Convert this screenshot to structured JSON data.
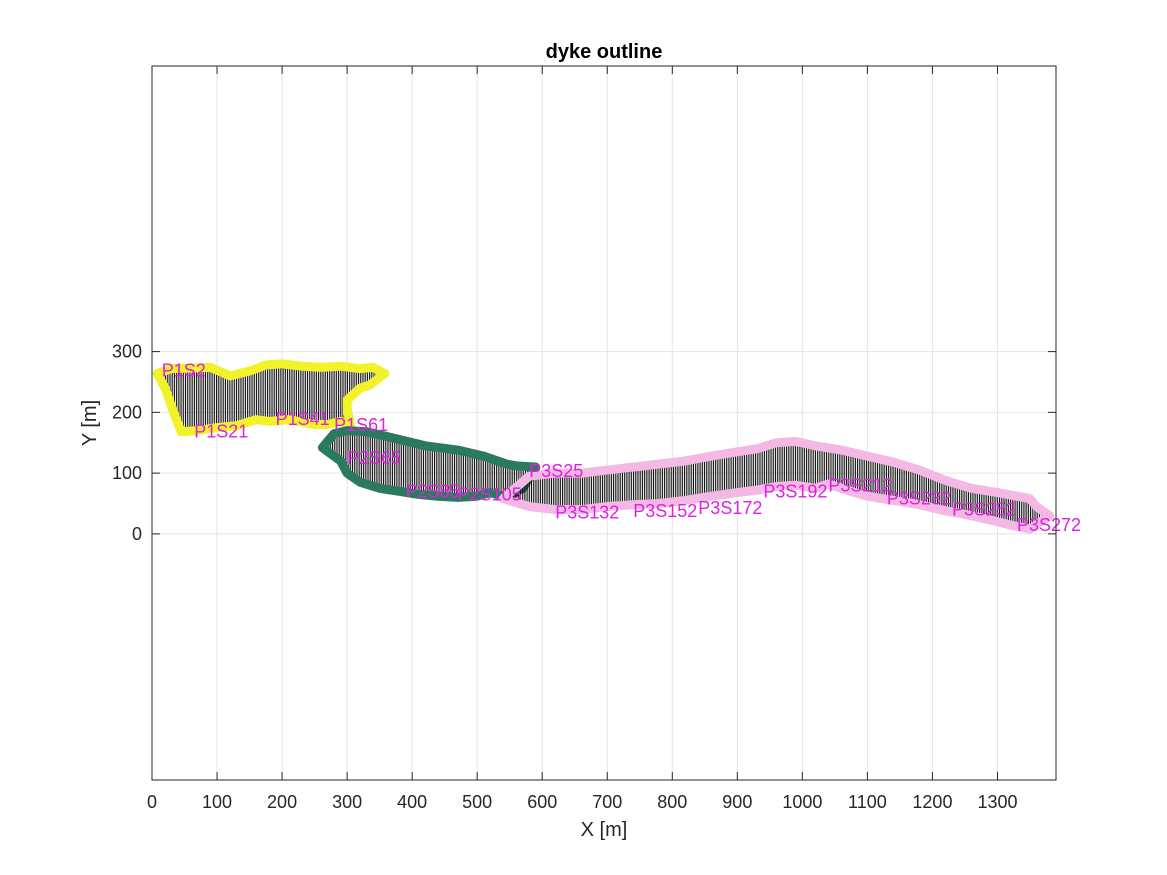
{
  "chart_data": {
    "type": "line",
    "title": "dyke outline",
    "xlabel": "X [m]",
    "ylabel": "Y [m]",
    "xlim": [
      0,
      1390
    ],
    "ylim": [
      -405,
      770
    ],
    "x_ticks": [
      0,
      100,
      200,
      300,
      400,
      500,
      600,
      700,
      800,
      900,
      1000,
      1100,
      1200,
      1300
    ],
    "y_ticks": [
      0,
      100,
      200,
      300
    ],
    "grid": true,
    "colors": {
      "yellow": "#f2f22a",
      "green": "#2a7a60",
      "pink": "#f4b8e4",
      "labels": "#e020e0",
      "hatch": "#000000"
    },
    "series": [
      {
        "color": "#f2f22a",
        "top": [
          [
            8,
            264
          ],
          [
            30,
            272
          ],
          [
            60,
            273
          ],
          [
            90,
            274
          ],
          [
            120,
            260
          ],
          [
            150,
            268
          ],
          [
            175,
            278
          ],
          [
            200,
            280
          ],
          [
            230,
            276
          ],
          [
            260,
            274
          ],
          [
            290,
            276
          ],
          [
            320,
            272
          ],
          [
            340,
            274
          ],
          [
            358,
            264
          ]
        ],
        "bottom": [
          [
            8,
            264
          ],
          [
            20,
            240
          ],
          [
            35,
            195
          ],
          [
            45,
            168
          ],
          [
            70,
            170
          ],
          [
            100,
            175
          ],
          [
            130,
            178
          ],
          [
            160,
            188
          ],
          [
            180,
            185
          ],
          [
            210,
            188
          ],
          [
            250,
            180
          ],
          [
            270,
            180
          ],
          [
            290,
            185
          ],
          [
            305,
            180
          ],
          [
            300,
            205
          ],
          [
            300,
            220
          ],
          [
            320,
            240
          ],
          [
            335,
            245
          ],
          [
            358,
            264
          ]
        ]
      },
      {
        "color": "#2a7a60",
        "top": [
          [
            262,
            142
          ],
          [
            280,
            165
          ],
          [
            300,
            170
          ],
          [
            330,
            168
          ],
          [
            370,
            158
          ],
          [
            420,
            145
          ],
          [
            470,
            138
          ],
          [
            510,
            128
          ],
          [
            545,
            115
          ],
          [
            560,
            112
          ],
          [
            590,
            110
          ]
        ],
        "bottom": [
          [
            262,
            142
          ],
          [
            290,
            120
          ],
          [
            300,
            100
          ],
          [
            320,
            85
          ],
          [
            350,
            75
          ],
          [
            380,
            70
          ],
          [
            410,
            65
          ],
          [
            440,
            62
          ],
          [
            470,
            60
          ],
          [
            500,
            62
          ],
          [
            520,
            68
          ],
          [
            545,
            60
          ],
          [
            570,
            75
          ],
          [
            590,
            110
          ]
        ]
      },
      {
        "color": "#f4b8e4",
        "top": [
          [
            540,
            58
          ],
          [
            580,
            95
          ],
          [
            620,
            100
          ],
          [
            660,
            100
          ],
          [
            700,
            105
          ],
          [
            740,
            110
          ],
          [
            780,
            115
          ],
          [
            820,
            120
          ],
          [
            860,
            128
          ],
          [
            900,
            135
          ],
          [
            930,
            140
          ],
          [
            960,
            150
          ],
          [
            990,
            152
          ],
          [
            1020,
            145
          ],
          [
            1060,
            138
          ],
          [
            1100,
            128
          ],
          [
            1140,
            118
          ],
          [
            1180,
            105
          ],
          [
            1220,
            88
          ],
          [
            1260,
            75
          ],
          [
            1300,
            68
          ],
          [
            1330,
            62
          ],
          [
            1350,
            58
          ],
          [
            1360,
            45
          ],
          [
            1380,
            30
          ]
        ],
        "bottom": [
          [
            540,
            58
          ],
          [
            580,
            45
          ],
          [
            620,
            40
          ],
          [
            660,
            40
          ],
          [
            700,
            45
          ],
          [
            740,
            48
          ],
          [
            780,
            50
          ],
          [
            820,
            55
          ],
          [
            860,
            62
          ],
          [
            900,
            68
          ],
          [
            930,
            72
          ],
          [
            960,
            78
          ],
          [
            990,
            80
          ],
          [
            1020,
            75
          ],
          [
            1040,
            82
          ],
          [
            1060,
            75
          ],
          [
            1080,
            68
          ],
          [
            1100,
            62
          ],
          [
            1140,
            55
          ],
          [
            1180,
            48
          ],
          [
            1220,
            38
          ],
          [
            1260,
            30
          ],
          [
            1300,
            20
          ],
          [
            1330,
            12
          ],
          [
            1350,
            8
          ],
          [
            1380,
            30
          ]
        ]
      }
    ],
    "annotations": [
      {
        "text": "P1S2",
        "x": 15,
        "y": 259
      },
      {
        "text": "P1S21",
        "x": 65,
        "y": 159
      },
      {
        "text": "P1S41",
        "x": 190,
        "y": 179
      },
      {
        "text": "P1S61",
        "x": 280,
        "y": 169
      },
      {
        "text": "P2S65",
        "x": 300,
        "y": 115
      },
      {
        "text": "P2S85",
        "x": 390,
        "y": 60
      },
      {
        "text": "P2S105",
        "x": 470,
        "y": 55
      },
      {
        "text": "P3S25",
        "x": 580,
        "y": 94
      },
      {
        "text": "P3S132",
        "x": 620,
        "y": 25
      },
      {
        "text": "P3S152",
        "x": 740,
        "y": 28
      },
      {
        "text": "P3S172",
        "x": 840,
        "y": 33
      },
      {
        "text": "P3S192",
        "x": 940,
        "y": 60
      },
      {
        "text": "P3S212",
        "x": 1040,
        "y": 70
      },
      {
        "text": "P3S232",
        "x": 1130,
        "y": 48
      },
      {
        "text": "P3S252",
        "x": 1230,
        "y": 30
      },
      {
        "text": "P3S272",
        "x": 1330,
        "y": 5
      }
    ]
  }
}
